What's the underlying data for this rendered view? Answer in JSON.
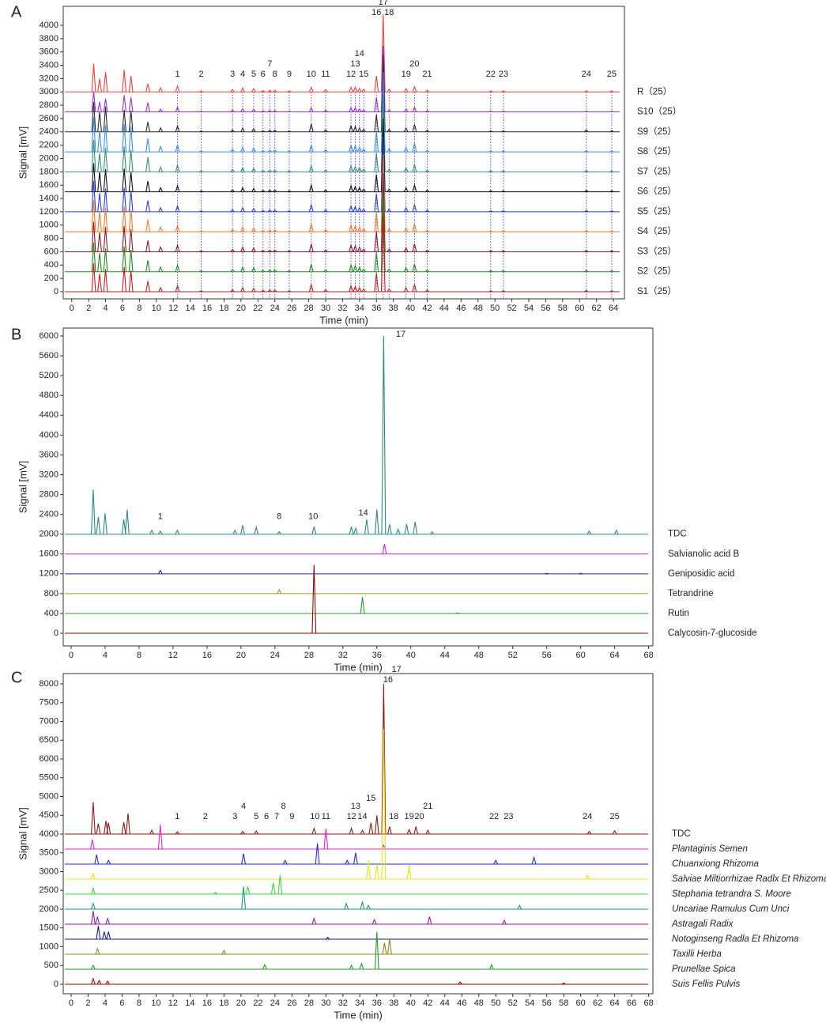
{
  "chart_data": [
    {
      "type": "chromatogram",
      "panel": "A",
      "xlabel": "Time (min)",
      "ylabel": "Signal [mV]",
      "xlim": [
        -1,
        65.3
      ],
      "ylim": [
        -107,
        4285
      ],
      "xticks": [
        0,
        2,
        4,
        6,
        8,
        10,
        12,
        14,
        16,
        18,
        20,
        22,
        24,
        26,
        28,
        30,
        32,
        34,
        36,
        38,
        40,
        42,
        44,
        46,
        48,
        50,
        52,
        54,
        56,
        58,
        60,
        62,
        64
      ],
      "yticks": [
        0,
        200,
        400,
        600,
        800,
        1000,
        1200,
        1400,
        1600,
        1800,
        2000,
        2200,
        2400,
        2600,
        2800,
        3000,
        3200,
        3400,
        3600,
        3800,
        4000
      ],
      "reference_lines": true,
      "peak_labels": [
        "1",
        "2",
        "3",
        "4",
        "5",
        "6",
        "7",
        "8",
        "9",
        "10",
        "11",
        "12",
        "13",
        "14",
        "15",
        "16",
        "17",
        "18",
        "19",
        "20",
        "21",
        "22",
        "23",
        "24",
        "25"
      ],
      "peak_label_times": [
        12.5,
        15.3,
        19.0,
        20.2,
        21.5,
        22.6,
        23.4,
        24.0,
        25.7,
        28.3,
        30.0,
        33.0,
        33.5,
        34.0,
        34.5,
        36.0,
        36.8,
        37.5,
        39.5,
        40.5,
        42.0,
        49.5,
        51.0,
        60.8,
        63.8
      ],
      "x": [
        2.6,
        3.3,
        4.0,
        6.2,
        7.0,
        9.0,
        10.5,
        12.5,
        15.3,
        19.0,
        20.2,
        21.5,
        22.6,
        23.4,
        24.0,
        25.7,
        28.3,
        30.0,
        33.0,
        33.5,
        34.0,
        34.5,
        36.0,
        36.8,
        37.5,
        39.5,
        40.5,
        42.0,
        49.5,
        51.0,
        60.8,
        63.8
      ],
      "series": [
        {
          "name": "R（25）",
          "color": "#e8433f",
          "baseline": 3000,
          "values": [
            420,
            200,
            300,
            330,
            240,
            120,
            60,
            90,
            15,
            35,
            60,
            50,
            20,
            25,
            25,
            15,
            70,
            35,
            70,
            70,
            50,
            40,
            240,
            1160,
            40,
            50,
            80,
            25,
            15,
            15,
            15,
            15
          ]
        },
        {
          "name": "S10（25）",
          "color": "#9b30d9",
          "baseline": 2700,
          "values": [
            300,
            150,
            200,
            250,
            220,
            140,
            40,
            70,
            10,
            30,
            50,
            40,
            15,
            20,
            20,
            10,
            60,
            25,
            60,
            60,
            45,
            30,
            220,
            1000,
            30,
            45,
            70,
            20,
            10,
            10,
            10,
            10
          ]
        },
        {
          "name": "S9（25）",
          "color": "#2a2a2a",
          "baseline": 2400,
          "values": [
            450,
            300,
            380,
            330,
            320,
            150,
            60,
            90,
            15,
            30,
            60,
            50,
            15,
            25,
            25,
            15,
            120,
            30,
            90,
            80,
            60,
            40,
            260,
            1150,
            40,
            60,
            110,
            25,
            15,
            15,
            30,
            20
          ]
        },
        {
          "name": "S8（25）",
          "color": "#3a8ee0",
          "baseline": 2100,
          "values": [
            520,
            320,
            400,
            420,
            380,
            200,
            80,
            110,
            15,
            35,
            70,
            60,
            20,
            25,
            25,
            15,
            100,
            30,
            100,
            90,
            70,
            40,
            300,
            1200,
            45,
            70,
            130,
            25,
            15,
            15,
            20,
            15
          ]
        },
        {
          "name": "S7（25）",
          "color": "#3a8a7a",
          "baseline": 1800,
          "values": [
            480,
            280,
            360,
            380,
            330,
            220,
            70,
            100,
            15,
            35,
            60,
            50,
            20,
            25,
            25,
            15,
            90,
            30,
            90,
            80,
            60,
            40,
            280,
            1150,
            40,
            60,
            110,
            25,
            15,
            15,
            20,
            15
          ]
        },
        {
          "name": "S6（25）",
          "color": "#111111",
          "baseline": 1500,
          "values": [
            430,
            300,
            340,
            350,
            300,
            160,
            60,
            90,
            15,
            30,
            60,
            50,
            20,
            25,
            25,
            15,
            100,
            30,
            90,
            80,
            60,
            40,
            260,
            1100,
            40,
            60,
            100,
            25,
            15,
            15,
            20,
            15
          ]
        },
        {
          "name": "S5（25）",
          "color": "#2a3fd6",
          "baseline": 1200,
          "values": [
            460,
            280,
            350,
            360,
            320,
            170,
            60,
            90,
            15,
            30,
            60,
            50,
            20,
            25,
            25,
            15,
            110,
            30,
            90,
            80,
            60,
            40,
            270,
            1120,
            40,
            60,
            110,
            25,
            15,
            15,
            20,
            15
          ]
        },
        {
          "name": "S4（25）",
          "color": "#f07a26",
          "baseline": 900,
          "values": [
            470,
            300,
            360,
            380,
            330,
            180,
            70,
            100,
            15,
            35,
            70,
            60,
            20,
            25,
            25,
            15,
            120,
            30,
            100,
            90,
            70,
            40,
            290,
            1160,
            40,
            60,
            120,
            25,
            15,
            15,
            20,
            15
          ]
        },
        {
          "name": "S3（25）",
          "color": "#8b1a2a",
          "baseline": 600,
          "values": [
            450,
            290,
            370,
            390,
            340,
            170,
            70,
            100,
            15,
            35,
            70,
            60,
            20,
            25,
            25,
            15,
            120,
            30,
            100,
            90,
            70,
            40,
            300,
            1180,
            40,
            60,
            120,
            25,
            15,
            15,
            20,
            15
          ]
        },
        {
          "name": "S2（25）",
          "color": "#1e8c1e",
          "baseline": 300,
          "values": [
            440,
            280,
            350,
            380,
            330,
            170,
            70,
            100,
            15,
            35,
            70,
            60,
            20,
            25,
            25,
            15,
            110,
            30,
            100,
            90,
            70,
            40,
            290,
            1160,
            40,
            60,
            110,
            25,
            15,
            15,
            20,
            15
          ]
        },
        {
          "name": "S1（25）",
          "color": "#c41e1e",
          "baseline": 0,
          "values": [
            430,
            270,
            340,
            370,
            320,
            160,
            60,
            90,
            15,
            30,
            60,
            50,
            20,
            25,
            25,
            15,
            110,
            30,
            90,
            80,
            60,
            40,
            280,
            1140,
            40,
            60,
            110,
            25,
            15,
            15,
            20,
            15
          ]
        }
      ]
    },
    {
      "type": "chromatogram",
      "panel": "B",
      "xlabel": "Time (min)",
      "ylabel": "Signal [mV]",
      "xlim": [
        -0.93,
        68.5
      ],
      "ylim": [
        -255,
        6160
      ],
      "xticks": [
        0,
        4,
        8,
        12,
        16,
        20,
        24,
        28,
        32,
        36,
        40,
        44,
        48,
        52,
        56,
        60,
        64,
        68
      ],
      "yticks": [
        0,
        400,
        800,
        1200,
        1600,
        2000,
        2400,
        2800,
        3200,
        3600,
        4000,
        4400,
        4800,
        5200,
        5600,
        6000
      ],
      "peak_labels": [
        "1",
        "8",
        "10",
        "14",
        "17"
      ],
      "peak_label_times": [
        10.5,
        24.5,
        28.5,
        34.4,
        37.5
      ],
      "series": [
        {
          "name": "TDC",
          "color": "#2a8a84",
          "baseline": 2000,
          "x": [
            2.6,
            3.2,
            4.0,
            6.2,
            6.6,
            9.5,
            10.5,
            12.5,
            19.3,
            20.2,
            21.8,
            24.5,
            28.6,
            33.0,
            33.5,
            34.8,
            36.0,
            36.8,
            37.5,
            38.5,
            39.5,
            40.5,
            42.5,
            61.0,
            64.2
          ],
          "values": [
            900,
            350,
            420,
            300,
            500,
            80,
            60,
            80,
            80,
            180,
            140,
            50,
            150,
            150,
            120,
            300,
            500,
            4000,
            200,
            100,
            200,
            250,
            50,
            60,
            80
          ]
        },
        {
          "name": "Salvianolic acid B",
          "color": "#c030c0",
          "baseline": 1600,
          "x": [
            36.9
          ],
          "values": [
            200
          ]
        },
        {
          "name": "Geniposidic acid",
          "color": "#2a2a9a",
          "baseline": 1200,
          "x": [
            10.5,
            56.0,
            60.0
          ],
          "values": [
            70,
            10,
            10
          ]
        },
        {
          "name": "Tetrandrine",
          "color": "#9a9a20",
          "baseline": 800,
          "x": [
            24.5
          ],
          "values": [
            80
          ]
        },
        {
          "name": "Rutin",
          "color": "#2a9a2a",
          "baseline": 400,
          "x": [
            34.3,
            45.5
          ],
          "values": [
            330,
            10
          ]
        },
        {
          "name": "Calycosin-7-glucoside",
          "color": "#8b0a0a",
          "baseline": 0,
          "x": [
            28.6
          ],
          "values": [
            1380
          ]
        }
      ]
    },
    {
      "type": "chromatogram",
      "panel": "C",
      "xlabel": "Time (min)",
      "ylabel": "Signal [mV]",
      "xlim": [
        -0.93,
        68.5
      ],
      "ylim": [
        -253,
        8274
      ],
      "xticks": [
        0,
        2,
        4,
        6,
        8,
        10,
        12,
        14,
        16,
        18,
        20,
        22,
        24,
        26,
        28,
        30,
        32,
        34,
        36,
        38,
        40,
        42,
        44,
        46,
        48,
        50,
        52,
        54,
        56,
        58,
        60,
        62,
        64,
        66,
        68
      ],
      "yticks": [
        0,
        500,
        1000,
        1500,
        2000,
        2500,
        3000,
        3500,
        4000,
        4500,
        5000,
        5500,
        6000,
        6500,
        7000,
        7500,
        8000
      ],
      "peak_labels": [
        "1",
        "2",
        "3",
        "4",
        "5",
        "6",
        "7",
        "8",
        "9",
        "10",
        "11",
        "12",
        "13",
        "14",
        "15",
        "16",
        "17",
        "18",
        "19",
        "20",
        "21",
        "22",
        "23",
        "24",
        "25"
      ],
      "peak_label_times": [
        12.5,
        15.8,
        19.3,
        20.3,
        21.8,
        23.0,
        24.2,
        25.0,
        26.0,
        28.7,
        30.0,
        33.0,
        33.5,
        34.3,
        35.3,
        36.0,
        37.0,
        38.0,
        39.8,
        41.0,
        42.0,
        49.8,
        51.5,
        60.8,
        64.0
      ],
      "series": [
        {
          "name": "TDC",
          "color": "#8b1a1a",
          "baseline": 4000,
          "x": [
            2.6,
            3.2,
            4.1,
            4.4,
            6.2,
            6.7,
            9.5,
            12.5,
            20.2,
            21.8,
            28.6,
            33.0,
            34.3,
            35.3,
            36.0,
            36.8,
            37.5,
            39.8,
            40.6,
            42.0,
            61.0,
            64.0
          ],
          "values": [
            850,
            280,
            350,
            300,
            320,
            550,
            100,
            60,
            70,
            80,
            150,
            150,
            100,
            300,
            500,
            4000,
            200,
            120,
            200,
            100,
            70,
            90
          ]
        },
        {
          "name": "Plantaginis Semen",
          "color": "#e020d0",
          "baseline": 3600,
          "italic": true,
          "x": [
            2.5,
            10.5,
            30.0,
            36.8
          ],
          "values": [
            250,
            650,
            550,
            100
          ]
        },
        {
          "name": "Chuanxiong Rhizoma",
          "color": "#2a2ad0",
          "baseline": 3200,
          "italic": true,
          "x": [
            3.0,
            4.4,
            20.3,
            25.2,
            29.0,
            32.5,
            33.5,
            50.0,
            54.5
          ],
          "values": [
            250,
            100,
            280,
            100,
            550,
            100,
            300,
            100,
            180
          ]
        },
        {
          "name": "Salviae Miltiorrhizae Radlx Et Rhizoma",
          "color": "#e8e020",
          "baseline": 2800,
          "italic": true,
          "x": [
            2.6,
            35.0,
            36.0,
            36.8,
            39.8,
            60.8
          ],
          "values": [
            150,
            500,
            400,
            4000,
            380,
            100
          ]
        },
        {
          "name": "Stephania tetrandra S. Moore",
          "color": "#40d040",
          "baseline": 2400,
          "italic": true,
          "x": [
            2.6,
            17.0,
            20.8,
            23.8,
            24.6
          ],
          "values": [
            150,
            50,
            200,
            300,
            500
          ]
        },
        {
          "name": "Uncariae Ramulus Cum Unci",
          "color": "#1a9a6a",
          "baseline": 2000,
          "italic": true,
          "x": [
            2.6,
            20.3,
            32.4,
            34.3,
            35.0,
            52.8
          ],
          "values": [
            150,
            600,
            150,
            200,
            100,
            100
          ]
        },
        {
          "name": "Astragali Radix",
          "color": "#9a1a9a",
          "baseline": 1600,
          "italic": true,
          "x": [
            2.6,
            3.1,
            4.3,
            28.6,
            35.7,
            42.2,
            51.0
          ],
          "values": [
            350,
            200,
            150,
            150,
            120,
            200,
            100
          ]
        },
        {
          "name": "Notoginseng Radla Et Rhizoma",
          "color": "#1a1a9a",
          "baseline": 1200,
          "italic": true,
          "x": [
            3.2,
            3.9,
            4.4,
            30.2
          ],
          "values": [
            350,
            200,
            200,
            50
          ]
        },
        {
          "name": "Taxilli Herba",
          "color": "#8a8a1a",
          "baseline": 800,
          "italic": true,
          "x": [
            3.1,
            18.0,
            36.9,
            37.5
          ],
          "values": [
            150,
            100,
            300,
            420
          ]
        },
        {
          "name": "Prunellae Spica",
          "color": "#2a9a2a",
          "baseline": 400,
          "italic": true,
          "x": [
            2.6,
            22.8,
            33.0,
            34.2,
            36.0,
            49.5
          ],
          "values": [
            100,
            120,
            100,
            150,
            1000,
            120
          ]
        },
        {
          "name": "Suis Fellis Pulvis",
          "color": "#8b0a0a",
          "baseline": 0,
          "italic": true,
          "x": [
            2.6,
            3.3,
            4.3,
            45.8,
            58.0
          ],
          "values": [
            150,
            100,
            80,
            60,
            30
          ]
        }
      ]
    }
  ]
}
